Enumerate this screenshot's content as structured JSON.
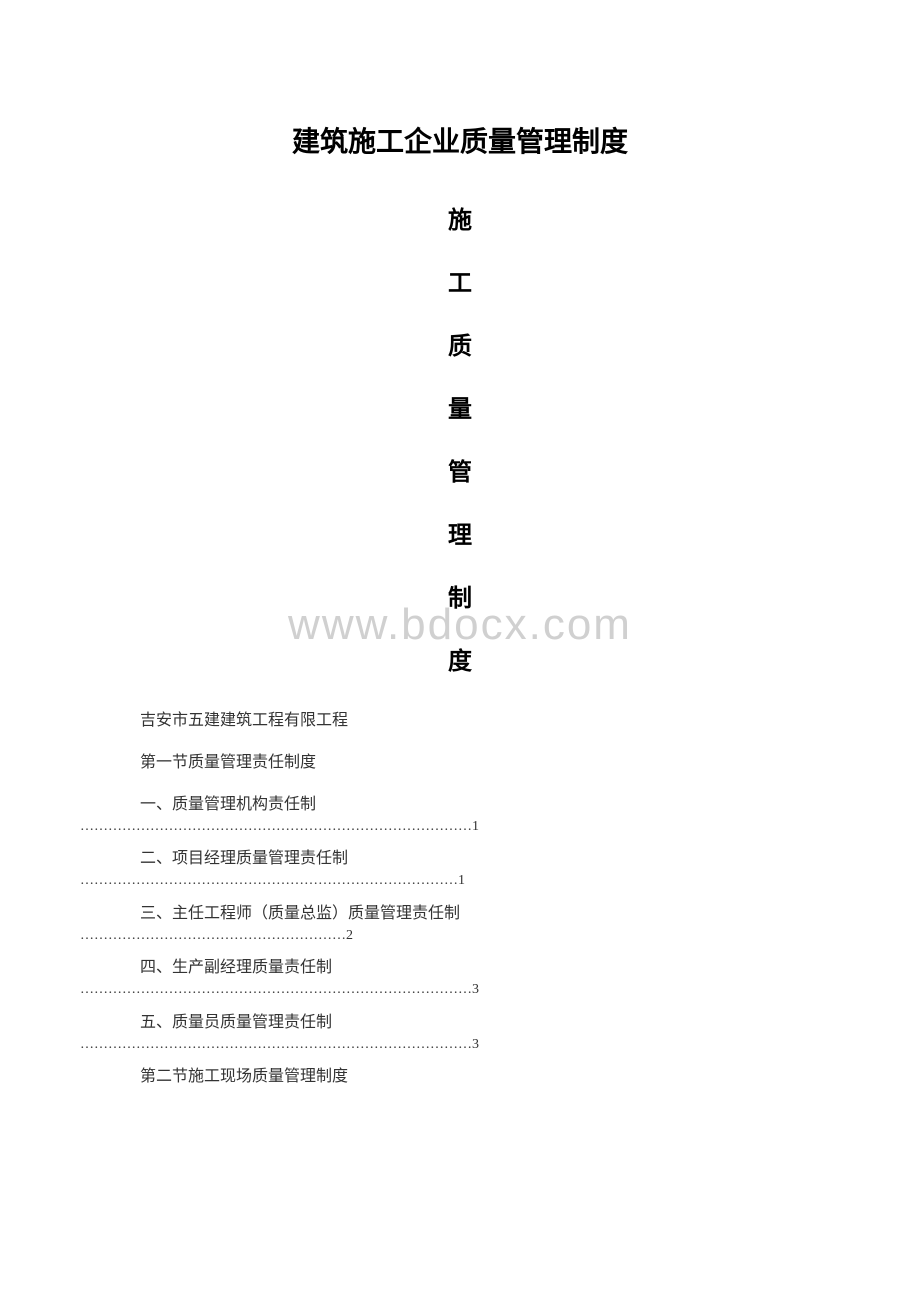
{
  "watermark": "www.bdocx.com",
  "main_title": "建筑施工企业质量管理制度",
  "vertical_title_chars": [
    "施",
    "工",
    "质",
    "量",
    "管",
    "理",
    "制",
    "度"
  ],
  "company_name": "吉安市五建建筑工程有限工程",
  "section1_title": "第一节质量管理责任制度",
  "toc_items": [
    {
      "label": "一、质量管理机构责任制",
      "dots": "…………………………………………………………………………1"
    },
    {
      "label": "二、项目经理质量管理责任制",
      "dots": "………………………………………………………………………1"
    },
    {
      "label": "三、主任工程师（质量总监）质量管理责任制",
      "dots": "…………………………………………………2"
    },
    {
      "label": "四、生产副经理质量责任制",
      "dots": "…………………………………………………………………………3"
    },
    {
      "label": "五、质量员质量管理责任制",
      "dots": "…………………………………………………………………………3"
    }
  ],
  "section2_title": "第二节施工现场质量管理制度"
}
